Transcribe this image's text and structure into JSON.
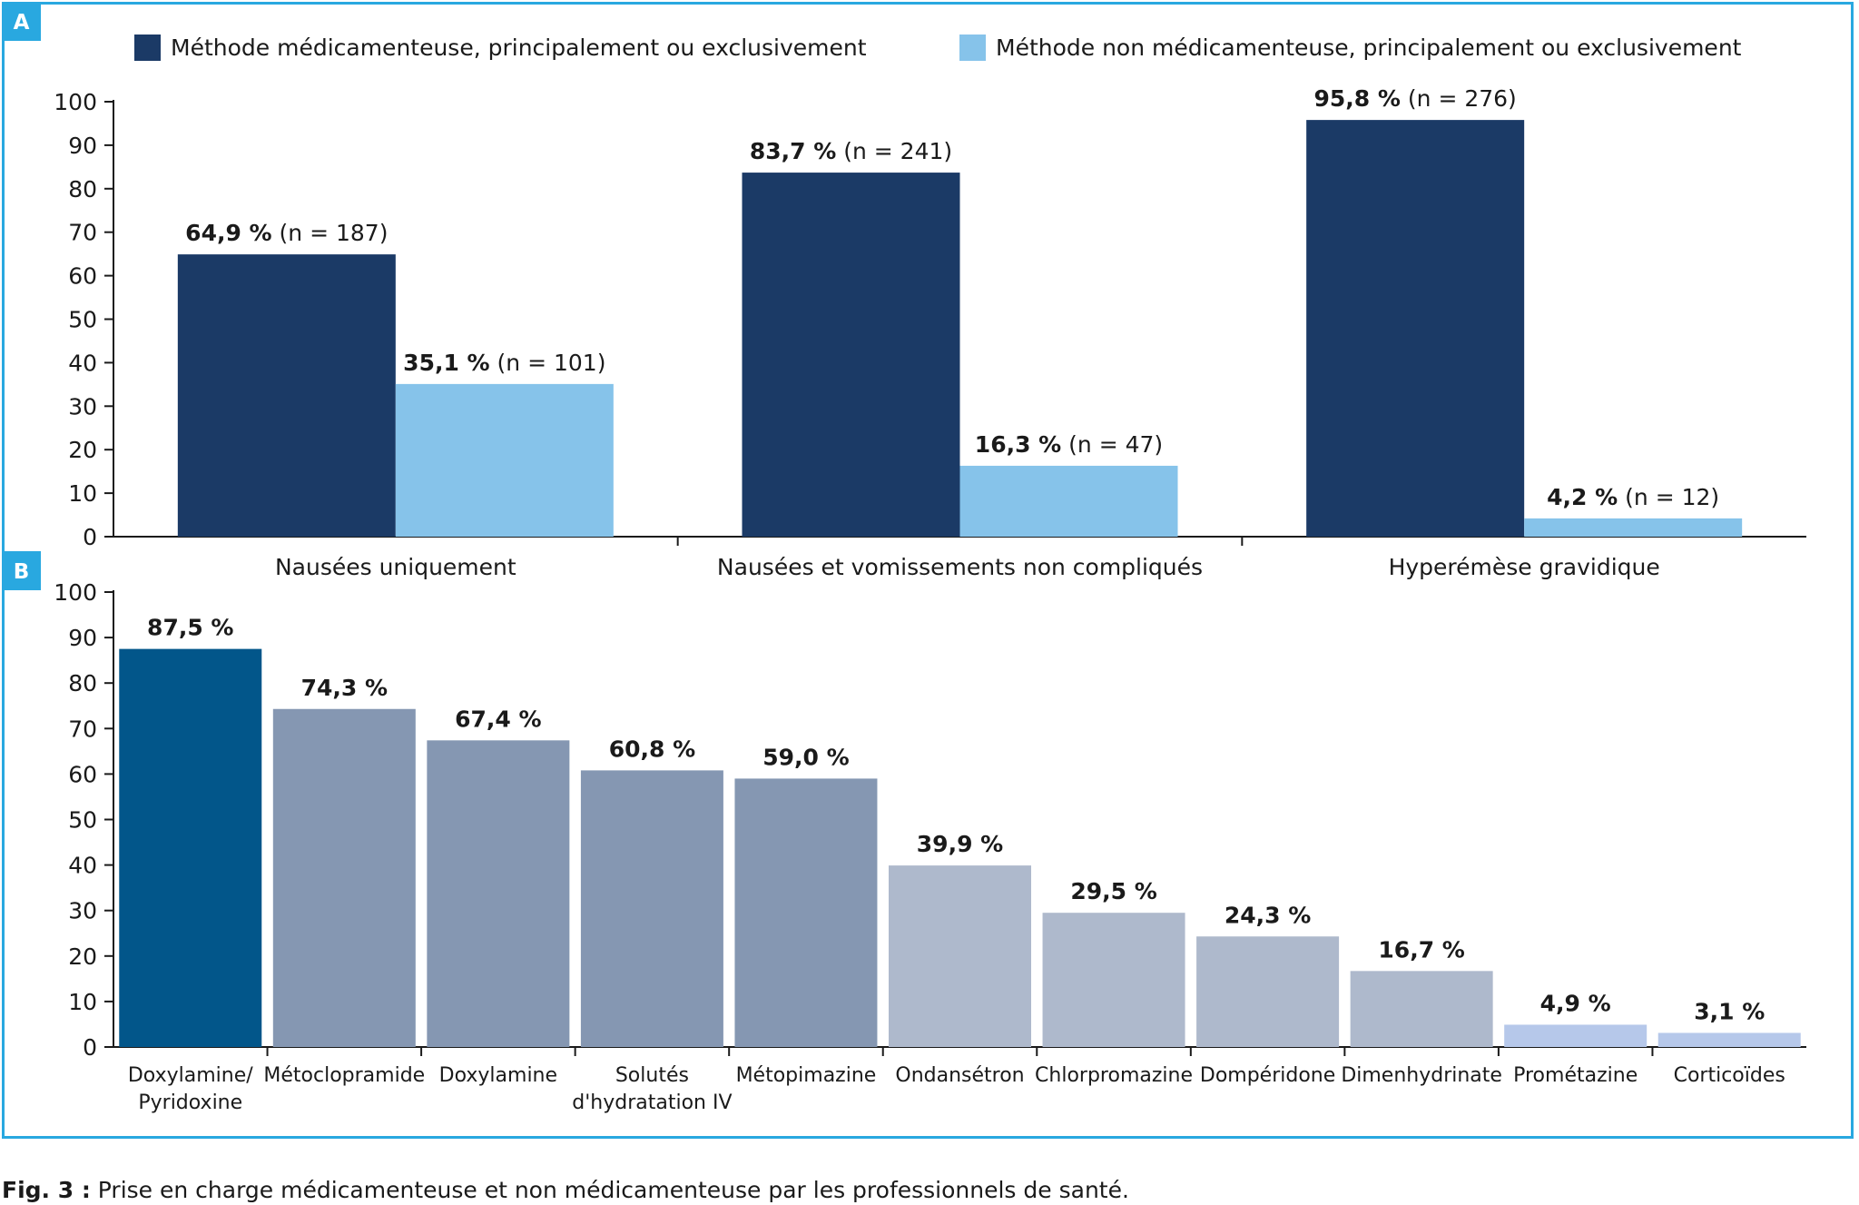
{
  "caption": {
    "prefix": "Fig. 3 :",
    "text": "Prise en charge médicamenteuse et non médicamenteuse par les professionnels de santé."
  },
  "chart_data": [
    {
      "panel": "A",
      "type": "bar",
      "legend": [
        "Méthode médicamenteuse, principalement ou exclusivement",
        "Méthode non médicamenteuse, principalement ou exclusivement"
      ],
      "legend_position": "top",
      "categories": [
        "Nausées uniquement",
        "Nausées et vomissements non compliqués",
        "Hyperémèse gravidique"
      ],
      "series": [
        {
          "name": "Méthode médicamenteuse, principalement ou exclusivement",
          "color": "#1b3a66",
          "values": [
            64.9,
            83.7,
            95.8
          ],
          "labels_bold": [
            "64,9 %",
            "83,7 %",
            "95,8 %"
          ],
          "labels_n": [
            "(n = 187)",
            "(n = 241)",
            "(n = 276)"
          ]
        },
        {
          "name": "Méthode non médicamenteuse, principalement ou exclusivement",
          "color": "#86c3ea",
          "values": [
            35.1,
            16.3,
            4.2
          ],
          "labels_bold": [
            "35,1 %",
            "16,3 %",
            "4,2 %"
          ],
          "labels_n": [
            "(n = 101)",
            "(n = 47)",
            "(n = 12)"
          ]
        }
      ],
      "ylim": [
        0,
        100
      ],
      "yticks": [
        "0",
        "10",
        "20",
        "30",
        "40",
        "50",
        "60",
        "70",
        "80",
        "90",
        "100"
      ],
      "grid": false
    },
    {
      "panel": "B",
      "type": "bar",
      "categories": [
        [
          "Doxylamine/",
          "Pyridoxine"
        ],
        [
          "Métoclopramide"
        ],
        [
          "Doxylamine"
        ],
        [
          "Solutés",
          "d'hydratation IV"
        ],
        [
          "Métopimazine"
        ],
        [
          "Ondansétron"
        ],
        [
          "Chlorpromazine"
        ],
        [
          "Dompéridone"
        ],
        [
          "Dimenhydrinate"
        ],
        [
          "Prométazine"
        ],
        [
          "Corticoïdes"
        ]
      ],
      "values": [
        87.5,
        74.3,
        67.4,
        60.8,
        59.0,
        39.9,
        29.5,
        24.3,
        16.7,
        4.9,
        3.1
      ],
      "labels": [
        "87,5 %",
        "74,3 %",
        "67,4 %",
        "60,8 %",
        "59,0 %",
        "39,9 %",
        "29,5 %",
        "24,3 %",
        "16,7 %",
        "4,9 %",
        "3,1 %"
      ],
      "colors": [
        "#02568a",
        "#8597b2",
        "#8597b2",
        "#8597b2",
        "#8597b2",
        "#aeb9cc",
        "#aeb9cc",
        "#aeb9cc",
        "#aeb9cc",
        "#b6c8ea",
        "#b6c8ea"
      ],
      "ylim": [
        0,
        100
      ],
      "yticks": [
        "0",
        "10",
        "20",
        "30",
        "40",
        "50",
        "60",
        "70",
        "80",
        "90",
        "100"
      ],
      "grid": false
    }
  ],
  "colors": {
    "frame": "#29a8e0",
    "tag_bg": "#29a8e0",
    "axis": "#1a1a1a"
  }
}
